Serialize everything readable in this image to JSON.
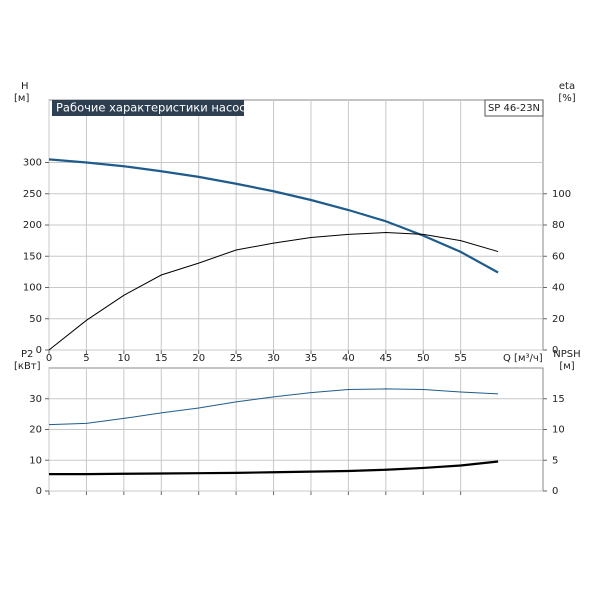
{
  "chart_data": [
    {
      "type": "line",
      "title": "Рабочие характеристики насоса",
      "model": "SP 46-23N",
      "xlabel": "Q [м³/ч]",
      "ylabel": "H",
      "yunit": "[м]",
      "y2label": "eta",
      "y2unit": "[%]",
      "x": [
        0,
        5,
        10,
        15,
        20,
        25,
        30,
        35,
        40,
        45,
        50,
        55,
        60
      ],
      "xlim": [
        0,
        66
      ],
      "xticks": [
        0,
        5,
        10,
        15,
        20,
        25,
        30,
        35,
        40,
        45,
        50,
        55
      ],
      "show_xtick_labels": true,
      "ylim": [
        0,
        400
      ],
      "yticks": [
        0,
        50,
        100,
        150,
        200,
        250,
        300
      ],
      "y2lim": [
        0,
        160
      ],
      "y2ticks": [
        0,
        20,
        40,
        60,
        80,
        100
      ],
      "grid": true,
      "series": [
        {
          "name": "H",
          "color": "#1f5c8b",
          "width": 2.2,
          "values": [
            305,
            300,
            294,
            286,
            277,
            266,
            254,
            240,
            224,
            206,
            183,
            157,
            124
          ]
        },
        {
          "name": "eta",
          "color": "#000000",
          "width": 1,
          "axis": "y2",
          "values": [
            0,
            19,
            35,
            48,
            55.6,
            64,
            68.4,
            72,
            74,
            75.2,
            74,
            70,
            63
          ]
        }
      ]
    },
    {
      "type": "line",
      "ylabel": "P2",
      "yunit": "[кВт]",
      "y2label": "NPSH",
      "y2unit": "[м]",
      "x": [
        0,
        5,
        10,
        15,
        20,
        25,
        30,
        35,
        40,
        45,
        50,
        55,
        60
      ],
      "xlim": [
        0,
        66
      ],
      "xticks": [
        0,
        5,
        10,
        15,
        20,
        25,
        30,
        35,
        40,
        45,
        50,
        55
      ],
      "show_xtick_labels": false,
      "ylim": [
        0,
        40
      ],
      "yticks": [
        0,
        10,
        20,
        30
      ],
      "y2lim": [
        0,
        20
      ],
      "y2ticks": [
        0,
        5,
        10,
        15
      ],
      "grid": true,
      "series": [
        {
          "name": "P2",
          "color": "#000000",
          "width": 2.2,
          "values": [
            5.5,
            5.5,
            5.6,
            5.7,
            5.8,
            5.9,
            6.1,
            6.3,
            6.5,
            6.9,
            7.5,
            8.3,
            9.6
          ]
        },
        {
          "name": "NPSH",
          "color": "#1f5c8b",
          "width": 1,
          "axis": "y2",
          "values": [
            10.8,
            11.0,
            11.8,
            12.7,
            13.5,
            14.5,
            15.3,
            16.0,
            16.5,
            16.6,
            16.5,
            16.1,
            15.8
          ]
        }
      ]
    }
  ]
}
